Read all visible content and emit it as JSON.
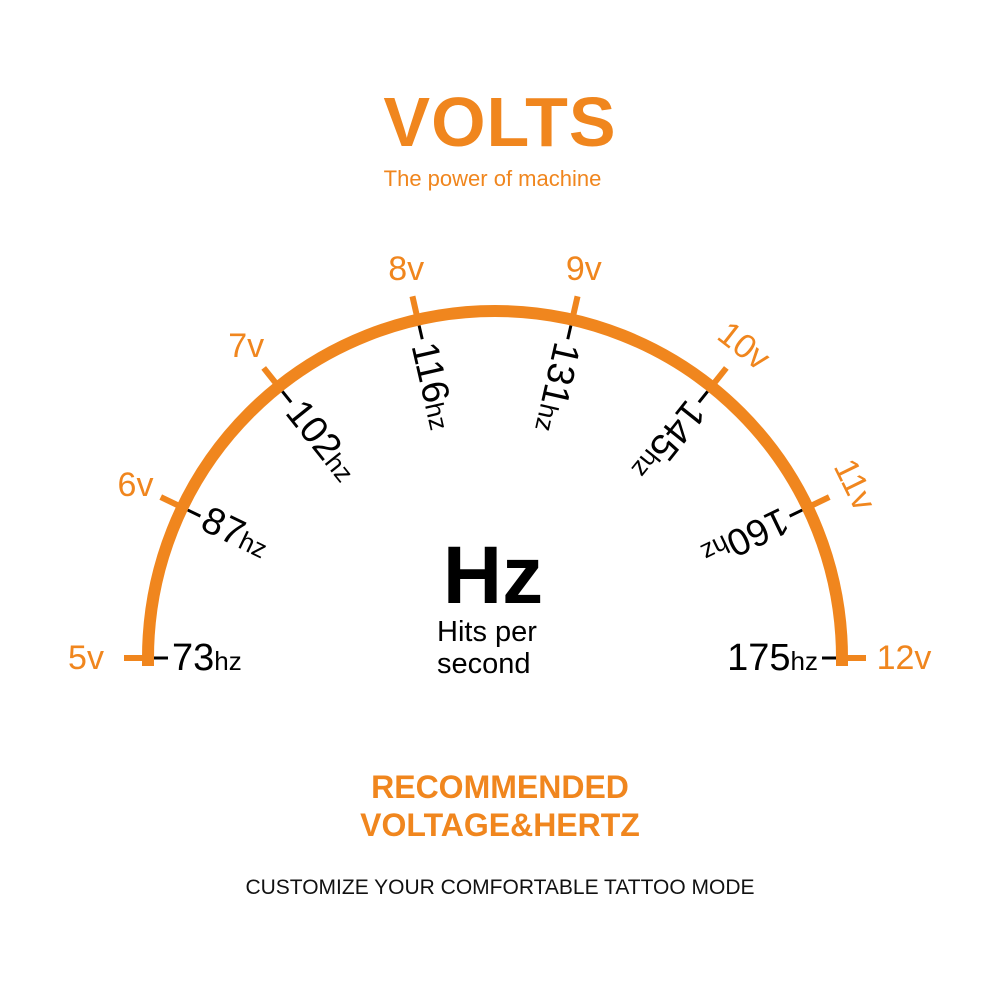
{
  "header": {
    "title": "VOLTS",
    "subtitle": "The power of machine"
  },
  "center": {
    "unit": "Hz",
    "line1": "Hits per",
    "line2": "second"
  },
  "footer": {
    "recommended_line1": "RECOMMENDED",
    "recommended_line2": "VOLTAGE&HERTZ",
    "tagline": "CUSTOMIZE YOUR COMFORTABLE TATTOO MODE"
  },
  "colors": {
    "accent": "#F0861E",
    "text": "#000000"
  },
  "gauge": {
    "ticks": [
      {
        "volts": "5v",
        "hz": "73",
        "hz_unit": "hz"
      },
      {
        "volts": "6v",
        "hz": "87",
        "hz_unit": "hz"
      },
      {
        "volts": "7v",
        "hz": "102",
        "hz_unit": "hz"
      },
      {
        "volts": "8v",
        "hz": "116",
        "hz_unit": "hz"
      },
      {
        "volts": "9v",
        "hz": "131",
        "hz_unit": "hz"
      },
      {
        "volts": "10v",
        "hz": "145",
        "hz_unit": "hz"
      },
      {
        "volts": "11v",
        "hz": "160",
        "hz_unit": "hz"
      },
      {
        "volts": "12v",
        "hz": "175",
        "hz_unit": "hz"
      }
    ]
  }
}
